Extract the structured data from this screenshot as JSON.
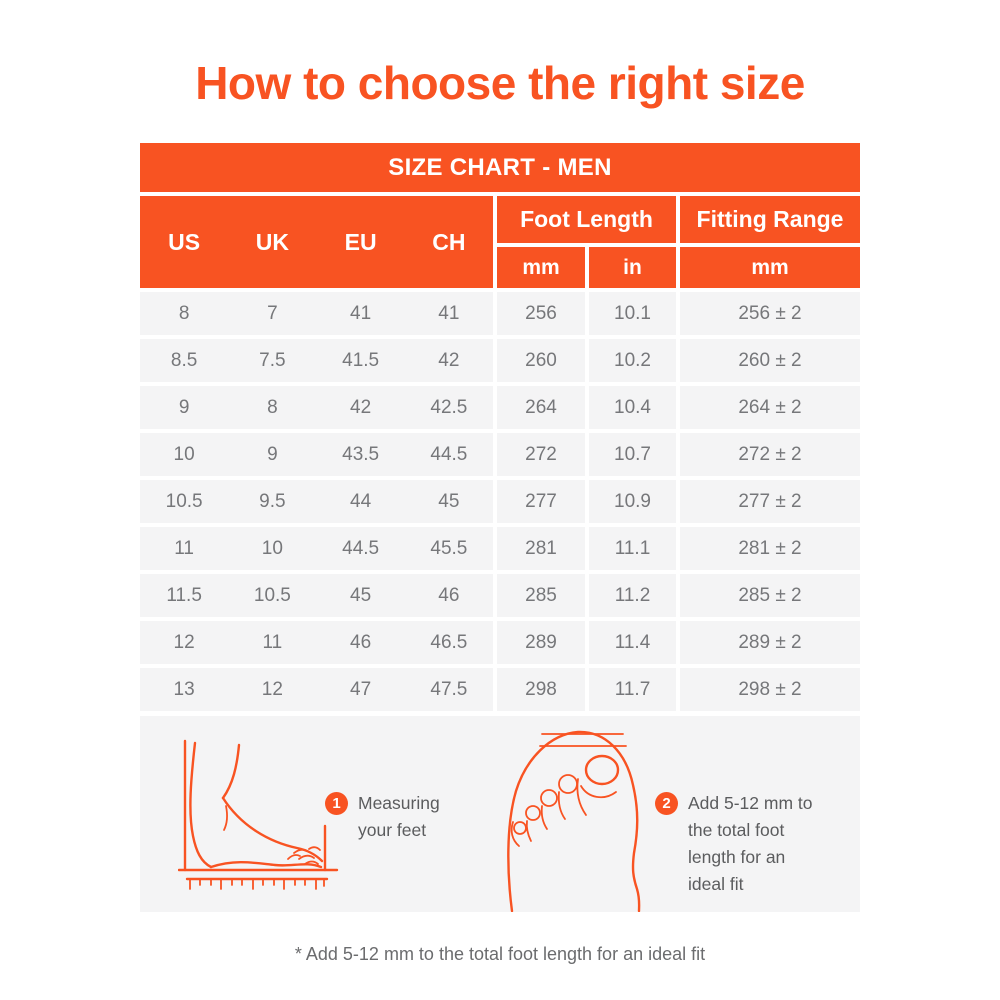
{
  "page": {
    "title": "How to choose the right size",
    "footnote": "* Add 5-12 mm to the total foot length for an ideal fit"
  },
  "colors": {
    "accent_orange": "#F85322",
    "row_background": "#F4F4F5",
    "data_text": "#76777A",
    "note_text": "#6B6C6E"
  },
  "table": {
    "banner": "SIZE CHART - MEN",
    "size_columns": [
      "US",
      "UK",
      "EU",
      "CH"
    ],
    "group_headers": {
      "foot_length": "Foot Length",
      "fitting_range": "Fitting Range"
    },
    "unit_headers": {
      "foot_length_mm": "mm",
      "foot_length_in": "in",
      "fitting_range_mm": "mm"
    },
    "rows": [
      {
        "us": "8",
        "uk": "7",
        "eu": "41",
        "ch": "41",
        "mm": "256",
        "in": "10.1",
        "fit": "256 ± 2"
      },
      {
        "us": "8.5",
        "uk": "7.5",
        "eu": "41.5",
        "ch": "42",
        "mm": "260",
        "in": "10.2",
        "fit": "260 ± 2"
      },
      {
        "us": "9",
        "uk": "8",
        "eu": "42",
        "ch": "42.5",
        "mm": "264",
        "in": "10.4",
        "fit": "264 ± 2"
      },
      {
        "us": "10",
        "uk": "9",
        "eu": "43.5",
        "ch": "44.5",
        "mm": "272",
        "in": "10.7",
        "fit": "272 ± 2"
      },
      {
        "us": "10.5",
        "uk": "9.5",
        "eu": "44",
        "ch": "45",
        "mm": "277",
        "in": "10.9",
        "fit": "277 ± 2"
      },
      {
        "us": "11",
        "uk": "10",
        "eu": "44.5",
        "ch": "45.5",
        "mm": "281",
        "in": "11.1",
        "fit": "281 ± 2"
      },
      {
        "us": "11.5",
        "uk": "10.5",
        "eu": "45",
        "ch": "46",
        "mm": "285",
        "in": "11.2",
        "fit": "285 ± 2"
      },
      {
        "us": "12",
        "uk": "11",
        "eu": "46",
        "ch": "46.5",
        "mm": "289",
        "in": "11.4",
        "fit": "289 ± 2"
      },
      {
        "us": "13",
        "uk": "12",
        "eu": "47",
        "ch": "47.5",
        "mm": "298",
        "in": "11.7",
        "fit": "298 ± 2"
      }
    ]
  },
  "steps": [
    {
      "number": "1",
      "lines": [
        "Measuring",
        "your feet"
      ],
      "icon": "foot-side-view"
    },
    {
      "number": "2",
      "lines": [
        "Add 5-12 mm to",
        "the total foot",
        "length for an",
        "ideal fit"
      ],
      "icon": "foot-top-view"
    }
  ]
}
